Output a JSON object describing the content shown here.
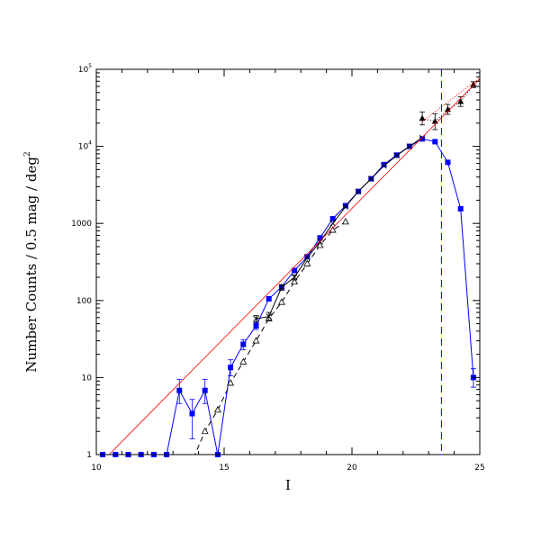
{
  "chart_data": {
    "type": "line",
    "title": "",
    "xlabel": "I",
    "ylabel": "Number Counts / 0.5 mag / deg",
    "ylabel_superscript": "2",
    "xlim": [
      10,
      25
    ],
    "ylim": [
      1,
      100000
    ],
    "yscale": "log",
    "x_ticks": [
      10,
      15,
      20,
      25
    ],
    "x_tick_labels": [
      "10",
      "15",
      "20",
      "25"
    ],
    "y_ticks": [
      1,
      10,
      100,
      1000,
      10000,
      100000
    ],
    "y_tick_labels": [
      {
        "base": "1",
        "sup": ""
      },
      {
        "base": "10",
        "sup": ""
      },
      {
        "base": "100",
        "sup": ""
      },
      {
        "base": "1000",
        "sup": ""
      },
      {
        "base": "10",
        "sup": "4"
      },
      {
        "base": "10",
        "sup": "5"
      }
    ],
    "grid": false,
    "series": [
      {
        "style": "blue-squares-solid",
        "color": "#0000ff",
        "points": [
          {
            "x": 10.25,
            "y": 1
          },
          {
            "x": 10.75,
            "y": 1
          },
          {
            "x": 11.25,
            "y": 1
          },
          {
            "x": 11.75,
            "y": 1
          },
          {
            "x": 12.25,
            "y": 1
          },
          {
            "x": 12.75,
            "y": 1
          },
          {
            "x": 13.25,
            "y": 6.8,
            "lo": 4.6,
            "hi": 9.5
          },
          {
            "x": 13.75,
            "y": 3.4,
            "lo": 1.6,
            "hi": 5.2
          },
          {
            "x": 14.25,
            "y": 6.8,
            "lo": 4.6,
            "hi": 9.5
          },
          {
            "x": 14.75,
            "y": 1
          },
          {
            "x": 15.25,
            "y": 13.5,
            "lo": 10.5,
            "hi": 17
          },
          {
            "x": 15.75,
            "y": 27,
            "lo": 23,
            "hi": 31
          },
          {
            "x": 16.25,
            "y": 47,
            "lo": 42,
            "hi": 53
          },
          {
            "x": 16.75,
            "y": 105
          },
          {
            "x": 17.25,
            "y": 150
          },
          {
            "x": 17.75,
            "y": 245
          },
          {
            "x": 18.25,
            "y": 370
          },
          {
            "x": 18.75,
            "y": 650
          },
          {
            "x": 19.25,
            "y": 1150
          },
          {
            "x": 19.75,
            "y": 1700
          },
          {
            "x": 20.25,
            "y": 2600
          },
          {
            "x": 20.75,
            "y": 3800
          },
          {
            "x": 21.25,
            "y": 5800
          },
          {
            "x": 21.75,
            "y": 7700
          },
          {
            "x": 22.25,
            "y": 10000
          },
          {
            "x": 22.75,
            "y": 12500
          },
          {
            "x": 23.25,
            "y": 11500
          },
          {
            "x": 23.75,
            "y": 6200
          },
          {
            "x": 24.25,
            "y": 1550
          },
          {
            "x": 24.75,
            "y": 10,
            "lo": 7.5,
            "hi": 13
          }
        ]
      },
      {
        "style": "black-open-triangles-dashed",
        "color": "#000000",
        "points": [
          {
            "x": 13.8,
            "y": 0.9
          },
          {
            "x": 14.25,
            "y": 2.0
          },
          {
            "x": 14.75,
            "y": 3.8
          },
          {
            "x": 15.25,
            "y": 8.5
          },
          {
            "x": 15.75,
            "y": 16
          },
          {
            "x": 16.25,
            "y": 30
          },
          {
            "x": 16.75,
            "y": 58
          },
          {
            "x": 17.25,
            "y": 95
          },
          {
            "x": 17.75,
            "y": 175
          },
          {
            "x": 18.25,
            "y": 300
          },
          {
            "x": 18.75,
            "y": 520
          },
          {
            "x": 19.25,
            "y": 820
          },
          {
            "x": 19.75,
            "y": 1050
          }
        ]
      },
      {
        "style": "black-crosses-solid",
        "color": "#000000",
        "points": [
          {
            "x": 16.25,
            "y": 58,
            "lo": 52,
            "hi": 64
          },
          {
            "x": 16.75,
            "y": 62,
            "lo": 55,
            "hi": 70
          },
          {
            "x": 17.25,
            "y": 148,
            "lo": 135,
            "hi": 160
          },
          {
            "x": 17.75,
            "y": 200,
            "lo": 185,
            "hi": 215
          },
          {
            "x": 18.25,
            "y": 360
          },
          {
            "x": 18.75,
            "y": 580
          },
          {
            "x": 19.25,
            "y": 1000
          },
          {
            "x": 19.75,
            "y": 1650
          },
          {
            "x": 20.25,
            "y": 2600
          },
          {
            "x": 20.75,
            "y": 3800
          },
          {
            "x": 21.25,
            "y": 5600
          },
          {
            "x": 21.75,
            "y": 7600
          },
          {
            "x": 22.25,
            "y": 10000
          },
          {
            "x": 22.75,
            "y": 13000
          }
        ]
      },
      {
        "style": "black-filled-triangles-dotted",
        "color": "#000000",
        "points": [
          {
            "x": 22.75,
            "y": 23000,
            "lo": 19000,
            "hi": 28000
          },
          {
            "x": 23.25,
            "y": 21000,
            "lo": 16500,
            "hi": 26500
          },
          {
            "x": 23.75,
            "y": 30000,
            "lo": 26000,
            "hi": 35000
          },
          {
            "x": 24.25,
            "y": 38000,
            "lo": 33000,
            "hi": 44000
          },
          {
            "x": 24.75,
            "y": 63000,
            "lo": 58000,
            "hi": 69000
          }
        ]
      },
      {
        "style": "red-power-law",
        "color": "#ff0000",
        "points": [
          {
            "x": 10.5,
            "y": 1
          },
          {
            "x": 25,
            "y": 75000
          }
        ]
      },
      {
        "style": "red-dotted-fit",
        "color": "#ff0000",
        "points": [
          {
            "x": 22.75,
            "y": 21000
          },
          {
            "x": 25,
            "y": 78000
          }
        ]
      }
    ],
    "vertical_line": {
      "x": 23.5,
      "color": "#0000ff",
      "style": "dashed"
    }
  }
}
